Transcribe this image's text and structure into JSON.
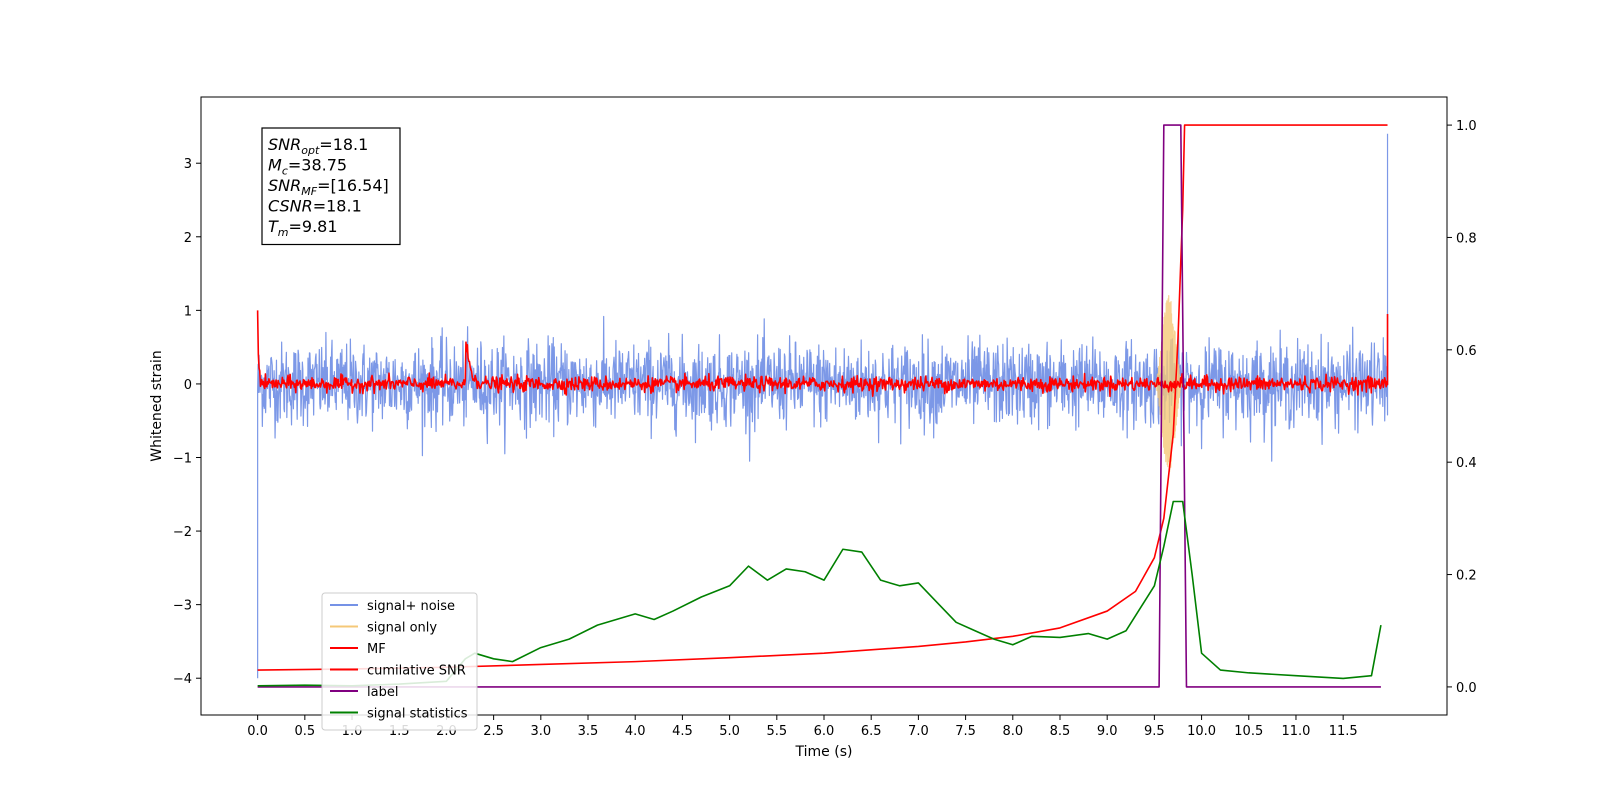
{
  "chart_data": {
    "type": "line",
    "title": "",
    "xlabel": "Time (s)",
    "ylabel": "Whitened strain",
    "y2label": "",
    "xlim": [
      -0.6,
      12.6
    ],
    "ylim": [
      -4.5,
      3.9
    ],
    "y2lim": [
      -0.05,
      1.05
    ],
    "x_ticks": [
      0.0,
      0.5,
      1.0,
      1.5,
      2.0,
      2.5,
      3.0,
      3.5,
      4.0,
      4.5,
      5.0,
      5.5,
      6.0,
      6.5,
      7.0,
      7.5,
      8.0,
      8.5,
      9.0,
      9.5,
      10.0,
      10.5,
      11.0,
      11.5
    ],
    "x_tick_labels": [
      "0.0",
      "0.5",
      "1.0",
      "1.5",
      "2.0",
      "2.5",
      "3.0",
      "3.5",
      "4.0",
      "4.5",
      "5.0",
      "5.5",
      "6.0",
      "6.5",
      "7.0",
      "7.5",
      "8.0",
      "8.5",
      "9.0",
      "9.5",
      "10.0",
      "10.5",
      "11.0",
      "11.5"
    ],
    "y_ticks": [
      -4,
      -3,
      -2,
      -1,
      0,
      1,
      2,
      3
    ],
    "y_tick_labels": [
      "−4",
      "−3",
      "−2",
      "−1",
      "0",
      "1",
      "2",
      "3"
    ],
    "y2_ticks": [
      0.0,
      0.2,
      0.4,
      0.6,
      0.8,
      1.0
    ],
    "y2_tick_labels": [
      "0.0",
      "0.2",
      "0.4",
      "0.6",
      "0.8",
      "1.0"
    ],
    "grid": false,
    "legend_position": "bottom-left",
    "annotation": {
      "lines": [
        {
          "sym": "SNR",
          "sub": "opt",
          "val": "=18.1"
        },
        {
          "sym": "M",
          "sub": "c",
          "val": "=38.75"
        },
        {
          "sym": "SNR",
          "sub": "MF",
          "val": "=[16.54]"
        },
        {
          "sym": "CSNR",
          "sub": "",
          "val": "=18.1"
        },
        {
          "sym": "T",
          "sub": "m",
          "val": "=9.81"
        }
      ]
    },
    "series": [
      {
        "name": "signal+ noise",
        "axis": "left",
        "color": "#7592e6",
        "kind": "noise",
        "x_range": [
          0.0,
          11.97
        ],
        "amplitude": 0.28,
        "peak_max": 1.1,
        "peak_min": -1.05,
        "end_values": {
          "start": -4.0,
          "end": 3.4
        }
      },
      {
        "name": "signal only",
        "axis": "left",
        "color": "#f5c878",
        "kind": "chirp",
        "x_range": [
          9.5,
          9.85
        ],
        "peak": 1.2
      },
      {
        "name": "MF",
        "axis": "left",
        "color": "#ff0000",
        "kind": "mf",
        "x_range": [
          0.0,
          11.97
        ],
        "amplitude": 0.05,
        "start_value": 1.0,
        "end_value": 0.95,
        "bump": {
          "x": 2.2,
          "value": 0.65
        }
      },
      {
        "name": "cumilative SNR",
        "axis": "right",
        "color": "#ff0000",
        "kind": "line",
        "x": [
          0.0,
          1.0,
          2.0,
          3.0,
          4.0,
          5.0,
          6.0,
          7.0,
          7.5,
          8.0,
          8.5,
          9.0,
          9.3,
          9.5,
          9.6,
          9.7,
          9.75,
          9.8,
          9.82,
          11.97
        ],
        "y": [
          0.03,
          0.032,
          0.035,
          0.04,
          0.045,
          0.052,
          0.06,
          0.072,
          0.08,
          0.09,
          0.105,
          0.135,
          0.17,
          0.23,
          0.3,
          0.45,
          0.62,
          0.85,
          1.0,
          1.0
        ]
      },
      {
        "name": "label",
        "axis": "right",
        "color": "#800080",
        "kind": "line",
        "x": [
          0.0,
          9.55,
          9.6,
          9.78,
          9.84,
          11.9
        ],
        "y": [
          0.0,
          0.0,
          1.0,
          1.0,
          0.0,
          0.0
        ]
      },
      {
        "name": "signal statistics",
        "axis": "right",
        "color": "#008000",
        "kind": "line",
        "x": [
          0.0,
          0.5,
          1.0,
          1.5,
          2.0,
          2.2,
          2.3,
          2.5,
          2.7,
          3.0,
          3.3,
          3.6,
          4.0,
          4.2,
          4.4,
          4.7,
          5.0,
          5.2,
          5.4,
          5.6,
          5.8,
          6.0,
          6.2,
          6.4,
          6.6,
          6.8,
          7.0,
          7.2,
          7.4,
          7.6,
          7.8,
          8.0,
          8.2,
          8.5,
          8.8,
          9.0,
          9.2,
          9.5,
          9.6,
          9.7,
          9.8,
          9.9,
          10.0,
          10.2,
          10.5,
          11.0,
          11.5,
          11.8,
          11.9
        ],
        "y": [
          0.002,
          0.003,
          0.002,
          0.005,
          0.01,
          0.05,
          0.06,
          0.05,
          0.045,
          0.07,
          0.085,
          0.11,
          0.13,
          0.12,
          0.135,
          0.16,
          0.18,
          0.215,
          0.19,
          0.21,
          0.205,
          0.19,
          0.245,
          0.24,
          0.19,
          0.18,
          0.185,
          0.15,
          0.115,
          0.1,
          0.085,
          0.075,
          0.09,
          0.088,
          0.095,
          0.085,
          0.1,
          0.18,
          0.25,
          0.33,
          0.33,
          0.2,
          0.06,
          0.03,
          0.025,
          0.02,
          0.015,
          0.02,
          0.11
        ]
      }
    ]
  }
}
